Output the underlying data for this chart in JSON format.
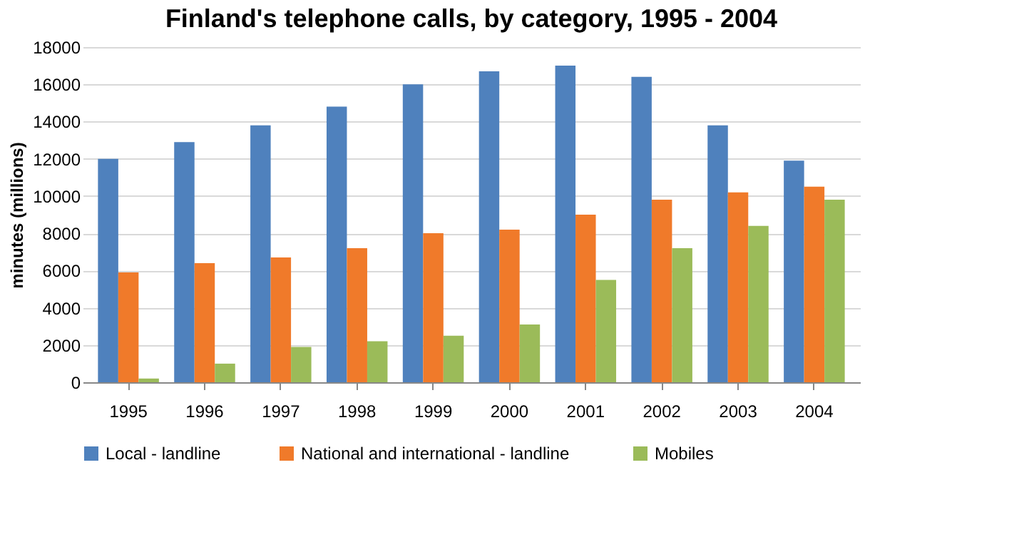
{
  "chart_data": {
    "type": "bar",
    "title": "Finland's telephone calls, by category, 1995 - 2004",
    "ylabel": "minutes  (millions)",
    "categories": [
      "1995",
      "1996",
      "1997",
      "1998",
      "1999",
      "2000",
      "2001",
      "2002",
      "2003",
      "2004"
    ],
    "series": [
      {
        "name": "Local - landline",
        "color": "#4f81bd",
        "values": [
          12000,
          12900,
          13800,
          14800,
          16000,
          16700,
          17000,
          16400,
          13800,
          11900
        ]
      },
      {
        "name": "National and international  - landline",
        "color": "#f07a2a",
        "values": [
          5900,
          6400,
          6700,
          7200,
          8000,
          8200,
          9000,
          9800,
          10200,
          10500
        ]
      },
      {
        "name": "Mobiles",
        "color": "#9bbb59",
        "values": [
          200,
          1000,
          1900,
          2200,
          2500,
          3100,
          5500,
          7200,
          8400,
          9800
        ]
      }
    ],
    "ylim": [
      0,
      18000
    ],
    "yticks": [
      0,
      2000,
      4000,
      6000,
      8000,
      10000,
      12000,
      14000,
      16000,
      18000
    ],
    "grid": "y",
    "legend": "bottom"
  }
}
